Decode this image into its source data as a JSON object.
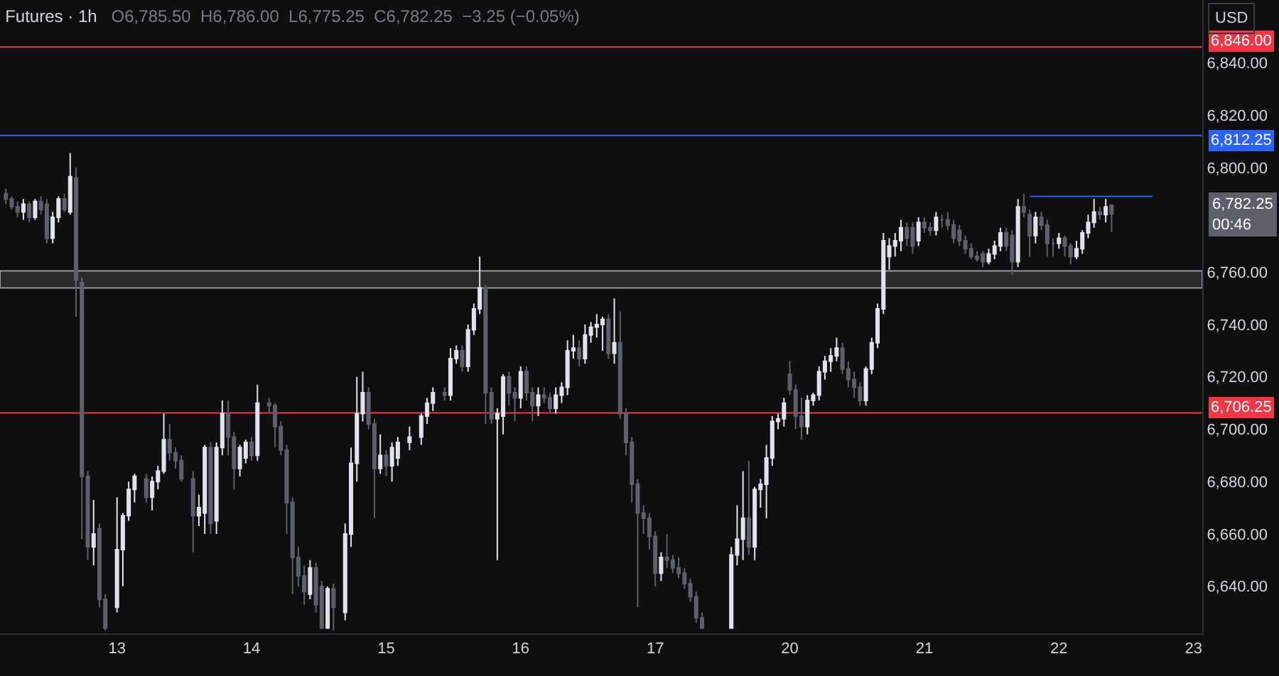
{
  "chart_data": {
    "type": "candlestick",
    "title": "Futures · 1h",
    "subtitle": "O6,785.50  H6,786.00  L6,775.25  C6,782.25  −3.25 (−0.05%)",
    "categories": [
      null,
      null,
      null,
      null,
      null,
      null,
      null,
      null,
      null,
      null,
      null,
      null,
      null,
      null,
      null,
      null,
      null,
      null,
      null,
      "13",
      null,
      null,
      null,
      null,
      null,
      null,
      null,
      null,
      null,
      null,
      null,
      null,
      null,
      null,
      null,
      null,
      null,
      null,
      null,
      null,
      null,
      null,
      "14",
      null,
      null,
      null,
      null,
      null,
      null,
      null,
      null,
      null,
      null,
      null,
      null,
      null,
      null,
      null,
      null,
      null,
      null,
      null,
      null,
      null,
      null,
      "15",
      null,
      null,
      null,
      null,
      null,
      null,
      null,
      null,
      null,
      null,
      null,
      null,
      null,
      null,
      null,
      null,
      null,
      null,
      null,
      null,
      null,
      null,
      "16",
      null,
      null,
      null,
      null,
      null,
      null,
      null,
      null,
      null,
      null,
      null,
      null,
      null,
      null,
      null,
      null,
      null,
      null,
      null,
      null,
      null,
      null,
      "17",
      null,
      null,
      null,
      null,
      null,
      null,
      null,
      null,
      null,
      null,
      null,
      null,
      null,
      null,
      null,
      null,
      null,
      null,
      null,
      null,
      null,
      null,
      "20",
      null,
      null,
      null,
      null,
      null,
      null,
      null,
      null,
      null,
      null,
      null,
      null,
      null,
      null,
      null,
      null,
      null,
      null,
      null,
      null,
      null,
      null,
      "21",
      null,
      null,
      null,
      null,
      null,
      null,
      null,
      null,
      null,
      null,
      null,
      null,
      null,
      null,
      null,
      null,
      null,
      null,
      null,
      null,
      null,
      null,
      "22",
      null,
      null,
      null,
      null,
      null,
      null,
      null,
      null,
      null,
      null,
      null,
      null,
      null,
      null,
      null,
      null,
      null,
      null,
      null,
      null,
      null,
      null,
      "23"
    ],
    "ohlc": [
      [
        6790,
        6792,
        6786,
        6788
      ],
      [
        6788,
        6789,
        6784,
        6785
      ],
      [
        6785,
        6787,
        6781,
        6783
      ],
      [
        6783,
        6788,
        6780,
        6786
      ],
      [
        6786,
        6787,
        6779,
        6781
      ],
      [
        6781,
        6788,
        6780,
        6787
      ],
      [
        6787,
        6789,
        6782,
        6784
      ],
      [
        6786,
        6788,
        6771,
        6773
      ],
      [
        6773,
        6783,
        6771,
        6781
      ],
      [
        6781,
        6789,
        6779,
        6788
      ],
      [
        6788,
        6790,
        6783,
        6784
      ],
      [
        6783,
        6805.5,
        6782,
        6796.5
      ],
      [
        6796,
        6800,
        6743,
        6757
      ],
      [
        6756,
        6758,
        6658,
        6682
      ],
      [
        6682,
        6684,
        6650,
        6655
      ],
      [
        6655,
        6673,
        6648,
        6660
      ],
      [
        6662,
        6664,
        6632,
        6635
      ],
      [
        6635,
        6637,
        6623,
        6624
      ],
      null,
      [
        6632,
        6674,
        6630,
        6654
      ],
      [
        6654,
        6668,
        6640,
        6667
      ],
      [
        6667,
        6680,
        6665,
        6677
      ],
      [
        6677,
        6683,
        6672,
        6682
      ],
      null,
      [
        6681,
        6683,
        6672,
        6674
      ],
      [
        6674,
        6682,
        6669,
        6680
      ],
      [
        6680,
        6686,
        6677,
        6684
      ],
      [
        6684,
        6706,
        6683,
        6696
      ],
      [
        6696,
        6702,
        6688,
        6691
      ],
      [
        6691,
        6693,
        6685,
        6688
      ],
      [
        6688,
        6690,
        6680,
        6681
      ],
      null,
      [
        6681,
        6684,
        6653,
        6667
      ],
      [
        6667,
        6675,
        6663,
        6670
      ],
      [
        6668,
        6694,
        6660,
        6693
      ],
      [
        6693,
        6695,
        6660,
        6664
      ],
      [
        6665,
        6695,
        6660,
        6693
      ],
      [
        6693,
        6711,
        6690,
        6706
      ],
      [
        6706,
        6711,
        6690,
        6697
      ],
      [
        6697,
        6699,
        6677,
        6685
      ],
      [
        6685,
        6694,
        6682,
        6693
      ],
      [
        6689,
        6696,
        6687,
        6695
      ],
      [
        6695,
        6697,
        6688,
        6690
      ],
      [
        6690,
        6717,
        6688,
        6710
      ],
      null,
      [
        6710,
        6712,
        6706,
        6709
      ],
      [
        6709,
        6710,
        6693,
        6701
      ],
      [
        6701,
        6703,
        6690,
        6692
      ],
      [
        6692,
        6694,
        6660,
        6672
      ],
      [
        6672,
        6674,
        6637,
        6651
      ],
      [
        6651,
        6655,
        6640,
        6644
      ],
      [
        6644,
        6648,
        6633,
        6638
      ],
      [
        6637,
        6650,
        6635,
        6647
      ],
      [
        6647,
        6649,
        6630,
        6633
      ],
      [
        6640,
        6642,
        6624,
        6624
      ],
      [
        6624,
        6640,
        6624,
        6639
      ],
      [
        6639,
        6641,
        6623,
        6632
      ],
      null,
      [
        6630,
        6664,
        6627,
        6660
      ],
      [
        6660,
        6693,
        6655,
        6687
      ],
      [
        6687,
        6720,
        6680,
        6706
      ],
      [
        6706,
        6722,
        6703,
        6714
      ],
      [
        6714,
        6716,
        6700,
        6702
      ],
      [
        6702,
        6704,
        6666,
        6685
      ],
      [
        6685,
        6698,
        6683,
        6690
      ],
      [
        6690,
        6692,
        6682,
        6686
      ],
      [
        6686,
        6695,
        6680,
        6693
      ],
      [
        6689,
        6697,
        6686,
        6695
      ],
      null,
      [
        6695,
        6701,
        6692,
        6697
      ],
      null,
      [
        6697,
        6706,
        6694,
        6705
      ],
      [
        6705,
        6712,
        6702,
        6710
      ],
      [
        6710,
        6716,
        6707,
        6714
      ],
      null,
      [
        6714,
        6716,
        6711,
        6713
      ],
      [
        6713,
        6731,
        6711,
        6727
      ],
      [
        6727,
        6732,
        6725,
        6730
      ],
      [
        6730,
        6732,
        6722,
        6724
      ],
      [
        6724,
        6740,
        6722,
        6738
      ],
      [
        6738,
        6748,
        6736,
        6746
      ],
      [
        6746,
        6766,
        6744,
        6754
      ],
      [
        6754,
        6755,
        6702,
        6714
      ],
      [
        6714,
        6716,
        6702,
        6704
      ],
      [
        6704,
        6708,
        6650,
        6706
      ],
      [
        6705,
        6721,
        6698,
        6720
      ],
      [
        6720,
        6722,
        6709,
        6714
      ],
      [
        6714,
        6716,
        6703,
        6712
      ],
      [
        6712,
        6724,
        6708,
        6722
      ],
      [
        6722,
        6724,
        6711,
        6714
      ],
      [
        6714,
        6716,
        6703,
        6709
      ],
      [
        6709,
        6716,
        6705,
        6713
      ],
      [
        6713,
        6716,
        6710,
        6712
      ],
      [
        6712,
        6714,
        6706,
        6708
      ],
      [
        6708,
        6716,
        6706,
        6713
      ],
      [
        6713,
        6718,
        6710,
        6716
      ],
      [
        6716,
        6734,
        6713,
        6730
      ],
      [
        6730,
        6736,
        6727,
        6731
      ],
      [
        6731,
        6734,
        6724,
        6727
      ],
      [
        6727,
        6740,
        6725,
        6736
      ],
      [
        6736,
        6741,
        6733,
        6739
      ],
      [
        6739,
        6744,
        6735,
        6740
      ],
      [
        6740,
        6743,
        6730,
        6742
      ],
      [
        6742,
        6744,
        6727,
        6729
      ],
      [
        6729,
        6750,
        6725,
        6733
      ],
      [
        6733,
        6745,
        6704,
        6706
      ],
      [
        6706,
        6708,
        6690,
        6695
      ],
      [
        6695,
        6697,
        6672,
        6679
      ],
      [
        6679,
        6681,
        6632,
        6668
      ],
      [
        6668,
        6671,
        6660,
        6666
      ],
      [
        6666,
        6668,
        6654,
        6659
      ],
      [
        6659,
        6661,
        6640,
        6645
      ],
      [
        6645,
        6653,
        6642,
        6651
      ],
      [
        6651,
        6660,
        6647,
        6650
      ],
      [
        6650,
        6652,
        6645,
        6647
      ],
      [
        6647,
        6651,
        6643,
        6645
      ],
      [
        6645,
        6647,
        6639,
        6641
      ],
      [
        6641,
        6643,
        6634,
        6636
      ],
      [
        6636,
        6638,
        6626,
        6628
      ],
      [
        6628,
        6630,
        6624,
        6624
      ],
      null,
      null,
      null,
      null,
      [
        6624,
        6655,
        6624,
        6652
      ],
      [
        6652,
        6671,
        6648,
        6658
      ],
      [
        6658,
        6684,
        6650,
        6666
      ],
      [
        6666,
        6688,
        6652,
        6655
      ],
      [
        6655,
        6678,
        6650,
        6677
      ],
      [
        6677,
        6681,
        6670,
        6679
      ],
      [
        6679,
        6694,
        6666,
        6689
      ],
      [
        6689,
        6705,
        6686,
        6703
      ],
      [
        6703,
        6706,
        6700,
        6704
      ],
      [
        6704,
        6712,
        6701,
        6710
      ],
      [
        6721,
        6726,
        6713,
        6715
      ],
      [
        6715,
        6717,
        6700,
        6705
      ],
      [
        6705,
        6712,
        6696,
        6701
      ],
      [
        6701,
        6713,
        6698,
        6711
      ],
      [
        6711,
        6714,
        6709,
        6713
      ],
      [
        6713,
        6724,
        6711,
        6722
      ],
      [
        6722,
        6728,
        6719,
        6726
      ],
      [
        6726,
        6731,
        6722,
        6728
      ],
      [
        6728,
        6735,
        6726,
        6731
      ],
      [
        6731,
        6733,
        6721,
        6723
      ],
      [
        6723,
        6726,
        6716,
        6719
      ],
      [
        6719,
        6722,
        6712,
        6716
      ],
      [
        6716,
        6718,
        6709,
        6711
      ],
      [
        6711,
        6724,
        6709,
        6723
      ],
      [
        6723,
        6735,
        6721,
        6733
      ],
      [
        6733,
        6748,
        6731,
        6746
      ],
      [
        6746,
        6775,
        6744,
        6772
      ],
      [
        6766,
        6773,
        6761,
        6770
      ],
      [
        6770,
        6775,
        6766,
        6772
      ],
      [
        6772,
        6780,
        6768,
        6777
      ],
      [
        6777,
        6779,
        6770,
        6773
      ],
      [
        6777,
        6779,
        6767,
        6770
      ],
      [
        6772,
        6781,
        6770,
        6779
      ],
      [
        6779,
        6781,
        6775,
        6777
      ],
      [
        6777,
        6779,
        6774,
        6776
      ],
      [
        6776,
        6783,
        6774,
        6781
      ],
      [
        6780,
        6782,
        6777,
        6780
      ],
      [
        6780,
        6783,
        6776,
        6778
      ],
      [
        6778,
        6780,
        6771,
        6773
      ],
      [
        6776,
        6778,
        6770,
        6772
      ],
      [
        6772,
        6774,
        6767,
        6769
      ],
      [
        6769,
        6771,
        6765,
        6766
      ],
      [
        6766,
        6768,
        6764,
        6765
      ],
      [
        6767,
        6768,
        6762,
        6764
      ],
      [
        6764,
        6769,
        6763,
        6767
      ],
      [
        6767,
        6772,
        6765,
        6770
      ],
      [
        6770,
        6777,
        6768,
        6775
      ],
      [
        6775,
        6777,
        6768,
        6770
      ],
      [
        6774,
        6776,
        6759,
        6764
      ],
      [
        6764,
        6788,
        6762,
        6785
      ],
      [
        6785,
        6790,
        6781,
        6783
      ],
      [
        6782,
        6784,
        6766,
        6774
      ],
      [
        6774,
        6783,
        6771,
        6781
      ],
      [
        6781,
        6783,
        6776,
        6778
      ],
      [
        6778,
        6780,
        6766,
        6771
      ],
      [
        6771,
        6773,
        6766,
        6771
      ],
      [
        6771,
        6775,
        6769,
        6773
      ],
      [
        6773,
        6774,
        6766,
        6770
      ],
      [
        6770,
        6771,
        6763,
        6766
      ],
      [
        6766,
        6772,
        6765,
        6769
      ],
      [
        6769,
        6776,
        6767,
        6775
      ],
      [
        6775,
        6782,
        6773,
        6779
      ],
      [
        6779,
        6788,
        6777,
        6783
      ],
      [
        6783,
        6785,
        6780,
        6782
      ],
      [
        6782,
        6788,
        6779,
        6785
      ],
      [
        6785.5,
        6786,
        6775.25,
        6782.25
      ],
      null,
      null,
      null,
      null,
      null,
      null,
      null,
      null,
      null,
      null,
      null,
      null,
      null,
      null
    ],
    "series": [
      {
        "type": "line",
        "color": "#2962ff",
        "values": [
          null,
          null,
          null,
          null,
          null,
          null,
          null,
          null,
          null,
          null,
          null,
          null,
          null,
          null,
          null,
          null,
          null,
          null,
          null,
          null,
          null,
          null,
          null,
          null,
          null,
          null,
          null,
          null,
          null,
          null,
          null,
          null,
          null,
          null,
          null,
          null,
          null,
          null,
          null,
          null,
          null,
          null,
          null,
          null,
          null,
          null,
          null,
          null,
          null,
          null,
          null,
          null,
          null,
          null,
          null,
          null,
          null,
          null,
          null,
          null,
          null,
          null,
          null,
          null,
          null,
          null,
          null,
          null,
          null,
          null,
          null,
          null,
          null,
          null,
          null,
          null,
          null,
          null,
          null,
          null,
          null,
          null,
          null,
          null,
          null,
          null,
          null,
          null,
          null,
          null,
          null,
          null,
          null,
          null,
          null,
          null,
          null,
          null,
          null,
          null,
          null,
          null,
          null,
          null,
          null,
          null,
          null,
          null,
          null,
          null,
          null,
          null,
          null,
          null,
          null,
          null,
          null,
          null,
          null,
          null,
          null,
          null,
          null,
          null,
          null,
          null,
          null,
          null,
          null,
          null,
          null,
          null,
          null,
          null,
          null,
          null,
          null,
          null,
          null,
          null,
          null,
          null,
          null,
          null,
          null,
          null,
          null,
          null,
          null,
          null,
          null,
          null,
          null,
          null,
          null,
          null,
          null,
          null,
          null,
          null,
          null,
          null,
          null,
          null,
          null,
          null,
          null,
          null,
          null,
          null,
          null,
          null,
          null,
          null,
          null,
          6789,
          6789,
          6789,
          6789,
          6789,
          6789,
          6789,
          6789,
          6789,
          6789,
          6789,
          6789,
          6789,
          6789,
          6789,
          6789,
          6789,
          6789,
          6789,
          6789,
          6789,
          6789,
          null,
          null,
          null,
          null,
          null,
          null,
          null
        ]
      }
    ],
    "ylim": [
      6622,
      6864
    ],
    "yticks": [
      {
        "value": 6640,
        "label": "6,640.00"
      },
      {
        "value": 6660,
        "label": "6,660.00"
      },
      {
        "value": 6680,
        "label": "6,680.00"
      },
      {
        "value": 6700,
        "label": "6,700.00"
      },
      {
        "value": 6720,
        "label": "6,720.00"
      },
      {
        "value": 6740,
        "label": "6,740.00"
      },
      {
        "value": 6760,
        "label": "6,760.00"
      },
      {
        "value": 6800,
        "label": "6,800.00"
      },
      {
        "value": 6820,
        "label": "6,820.00"
      },
      {
        "value": 6840,
        "label": "6,840.00"
      }
    ],
    "ref_lines": [
      {
        "axis": "y",
        "value": 6846,
        "label": "6,846.00",
        "color": "#f23645"
      },
      {
        "axis": "y",
        "value": 6812.25,
        "label": "6,812.25",
        "color": "#2962ff"
      },
      {
        "axis": "y",
        "value": 6706.25,
        "label": "6,706.25",
        "color": "#f23645"
      }
    ],
    "bands": [
      {
        "axis": "y",
        "from": 6754,
        "to": 6760.5,
        "color": "#2a2a2a"
      }
    ],
    "annotations": [
      "6,782.25\n00:46",
      "USD"
    ]
  }
}
